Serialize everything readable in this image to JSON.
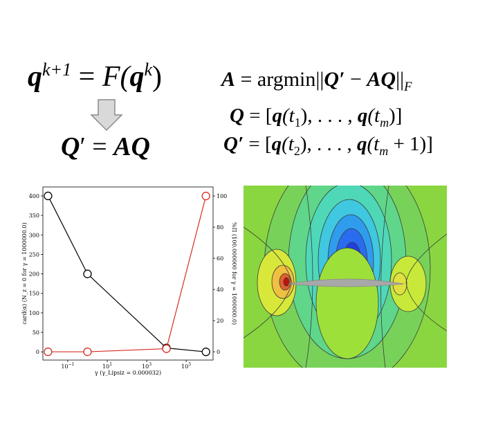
{
  "equations": [
    [
      "q",
      "k+1",
      "=",
      "F(",
      "q",
      "k",
      ")"
    ],
    [
      "Q",
      "′",
      "=",
      "AQ"
    ],
    [
      "A",
      "= argmin||",
      "Q′",
      "−",
      "AQ",
      "||",
      "F"
    ],
    [
      "Q",
      " = [",
      "q",
      "(t",
      "1",
      "), . . . , ",
      "q",
      "(t",
      "m",
      ")]"
    ],
    [
      "Q′",
      " = [",
      "q",
      "(t",
      "2",
      "), . . . , ",
      "q",
      "(t",
      "m",
      " + 1)]"
    ]
  ],
  "chart_data": {
    "type": "line",
    "xlabel": "γ (γ_Lipsiz = 0.000032)",
    "ylabel": "card(α) (N_z = 0 for γ = 1000000.0)",
    "y2label": "%Π (100.000000 for γ = 1000000.0)",
    "x": [
      0.01,
      1,
      10000,
      1000000
    ],
    "xscale": "log",
    "xlim": [
      0.0055,
      2300000
    ],
    "xticks": [
      {
        "value": 0.1,
        "label": "10",
        "exponent": "−1"
      },
      {
        "value": 10,
        "label": "10",
        "exponent": "1"
      },
      {
        "value": 1000,
        "label": "10",
        "exponent": "3"
      },
      {
        "value": 100000,
        "label": "10",
        "exponent": "5"
      }
    ],
    "ylim": [
      -21,
      423
    ],
    "yticks": [
      0,
      50,
      100,
      150,
      200,
      250,
      300,
      350,
      400
    ],
    "y2lim": [
      -5.3,
      105.8
    ],
    "y2ticks": [
      0,
      20,
      40,
      60,
      80,
      100
    ],
    "series": [
      {
        "color": "#000000",
        "values": [
          400,
          200,
          10,
          0
        ]
      },
      {
        "color": "#d62d20",
        "axis": "y2",
        "values": [
          0,
          0,
          2,
          100
        ]
      }
    ]
  }
}
